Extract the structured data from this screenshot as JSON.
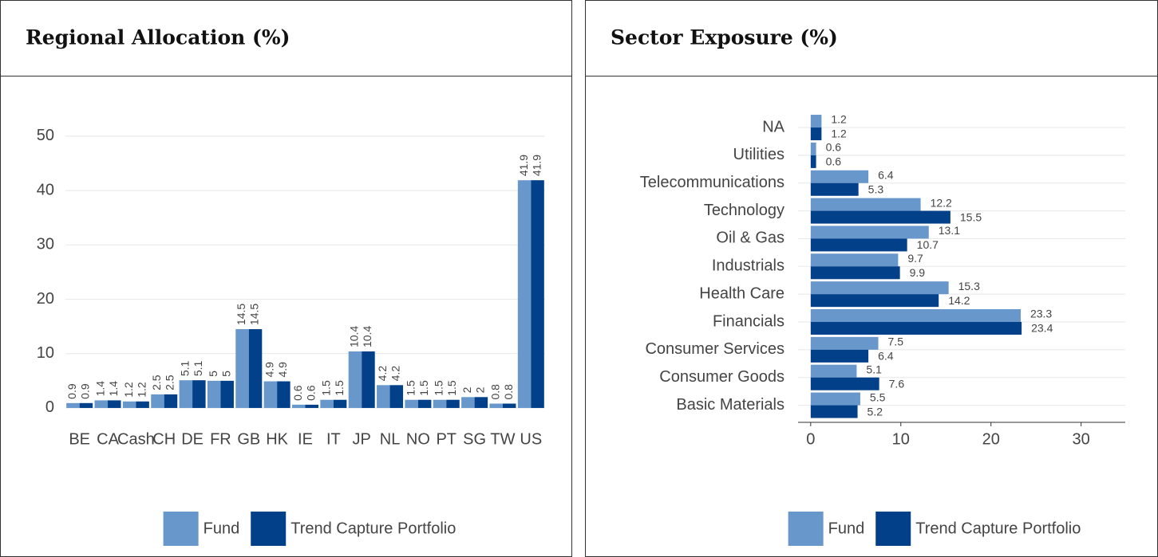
{
  "chart_data": [
    {
      "type": "bar",
      "title": "Regional Allocation (%)",
      "categories": [
        "BE",
        "CA",
        "Cash",
        "CH",
        "DE",
        "FR",
        "GB",
        "HK",
        "IE",
        "IT",
        "JP",
        "NL",
        "NO",
        "PT",
        "SG",
        "TW",
        "US"
      ],
      "series": [
        {
          "name": "Fund",
          "color": "#6897cb",
          "values": [
            0.9,
            1.4,
            1.2,
            2.5,
            5.1,
            5,
            14.5,
            4.9,
            0.6,
            1.5,
            10.4,
            4.2,
            1.5,
            1.5,
            2,
            0.8,
            41.9
          ]
        },
        {
          "name": "Trend Capture Portfolio",
          "color": "#02408a",
          "values": [
            0.9,
            1.4,
            1.2,
            2.5,
            5.1,
            5,
            14.5,
            4.9,
            0.6,
            1.5,
            10.4,
            4.2,
            1.5,
            1.5,
            2,
            0.8,
            41.9
          ]
        }
      ],
      "ylim": [
        -2,
        56
      ],
      "yticks": [
        0,
        10,
        20,
        30,
        40,
        50
      ],
      "grid": true
    },
    {
      "type": "barh",
      "title": "Sector Exposure (%)",
      "categories": [
        "Basic Materials",
        "Consumer Goods",
        "Consumer Services",
        "Financials",
        "Health Care",
        "Industrials",
        "Oil & Gas",
        "Technology",
        "Telecommunications",
        "Utilities",
        "NA"
      ],
      "series": [
        {
          "name": "Fund",
          "color": "#6897cb",
          "values": [
            5.5,
            5.1,
            7.5,
            23.3,
            15.3,
            9.7,
            13.1,
            12.2,
            6.4,
            0.6,
            1.2
          ]
        },
        {
          "name": "Trend Capture Portfolio",
          "color": "#02408a",
          "values": [
            5.2,
            7.6,
            6.4,
            23.4,
            14.2,
            9.9,
            10.7,
            15.5,
            5.3,
            0.6,
            1.2
          ]
        }
      ],
      "xlim": [
        -1.4,
        34.9
      ],
      "xticks": [
        0,
        10,
        20,
        30
      ],
      "grid": true
    }
  ]
}
